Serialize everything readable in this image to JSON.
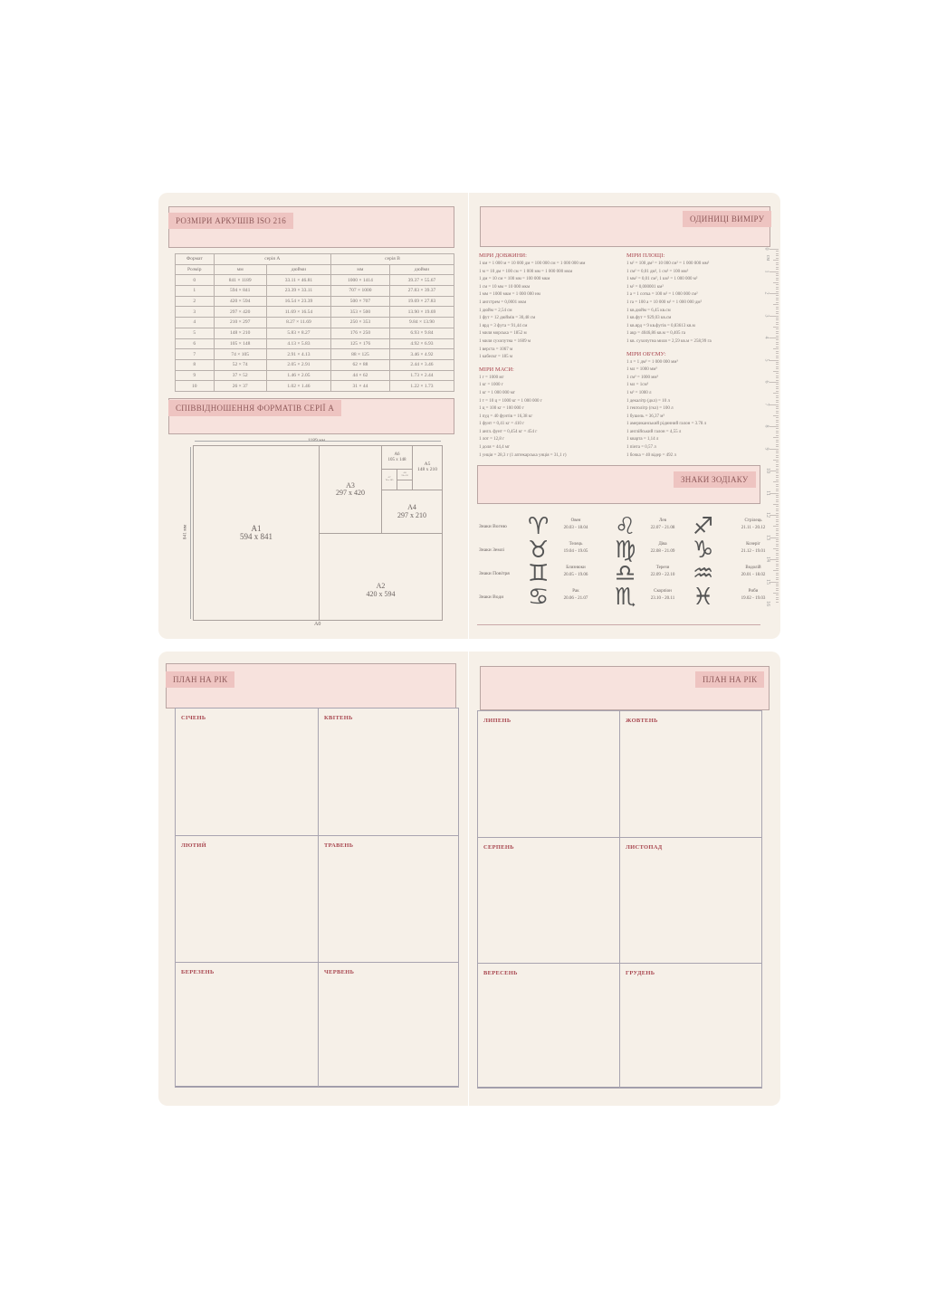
{
  "iso": {
    "title": "РОЗМІРИ АРКУШІВ ISO 216",
    "h_format": "Формат",
    "h_size": "Розмір",
    "series_a": "серія А",
    "series_b": "серія В",
    "mm": "мм",
    "inch": "дюйми",
    "rows": [
      [
        "0",
        "841 × 1189",
        "33.11 × 46.81",
        "1000 × 1414",
        "39.37 × 55.67"
      ],
      [
        "1",
        "594 × 841",
        "23.39 × 33.11",
        "707 × 1000",
        "27.83 × 39.37"
      ],
      [
        "2",
        "420 × 594",
        "16.54 × 23.39",
        "500 × 707",
        "19.69 × 27.83"
      ],
      [
        "3",
        "297 × 420",
        "11.69 × 16.54",
        "353 × 500",
        "13.90 × 19.69"
      ],
      [
        "4",
        "210 × 297",
        "8.27 × 11.69",
        "250 × 353",
        "9.84 × 13.90"
      ],
      [
        "5",
        "148 × 210",
        "5.83 × 8.27",
        "176 × 250",
        "6.93 × 9.84"
      ],
      [
        "6",
        "105 × 148",
        "4.13 × 5.83",
        "125 × 176",
        "4.92 × 6.93"
      ],
      [
        "7",
        "74 × 105",
        "2.91 × 4.13",
        "88 × 125",
        "3.46 × 4.92"
      ],
      [
        "8",
        "52 × 74",
        "2.05 × 2.91",
        "62 × 88",
        "2.44 × 3.46"
      ],
      [
        "9",
        "37 × 52",
        "1.46 × 2.05",
        "44 × 62",
        "1.73 × 2.44"
      ],
      [
        "10",
        "26 × 37",
        "1.02 × 1.46",
        "31 × 44",
        "1.22 × 1.73"
      ]
    ]
  },
  "ratio": {
    "title": "СПІВВІДНОШЕННЯ ФОРМАТІВ СЕРІЇ А",
    "width": "1189 мм",
    "height": "841 мм",
    "a0": "A0",
    "a1": [
      "A1",
      "594 x 841"
    ],
    "a2": [
      "A2",
      "420 x 594"
    ],
    "a3": [
      "A3",
      "297 x 420"
    ],
    "a4": [
      "A4",
      "297 x 210"
    ],
    "a5": [
      "A5",
      "148 x 210"
    ],
    "a6": [
      "A6",
      "105 x 148"
    ],
    "a7": [
      "A7",
      "74 x 105"
    ],
    "a8": [
      "A8",
      "74 x 52"
    ]
  },
  "units": {
    "title": "ОДИНИЦІ ВИМІРУ",
    "length_title": "МІРИ ДОВЖИНИ:",
    "length": [
      "1 км = 1 000 м = 10 000 дм = 100 000 см = 1 000 000 мм",
      "1 м = 10 дм = 100 см = 1 000 мм = 1 000 000 мкм",
      "1 дм = 10 см = 100 мм = 100 000 мкм",
      "1 см = 10 мм = 10 000 мкм",
      "1 мм = 1000 мкм = 1 000 000 нм",
      "1 ангстрем = 0,0001 мкм",
      "1 дюйм = 2,54 см",
      "1 фут = 12 дюймів = 30,48 см",
      "1 ярд = 3 фута = 91,44 см",
      "1 миля морська = 1852 м",
      "1 миля сухопутна = 1609 м",
      "1 верста = 1067 м",
      "1 кабельт = 185 м"
    ],
    "mass_title": "МІРИ МАСИ:",
    "mass": [
      "1 г = 1000 мг",
      "1 кг = 1000 г",
      "1 кг = 1 000 000 мг",
      "1 т = 10 ц = 1000 кг = 1 000 000 г",
      "1 ц = 100 кг = 100 000 г",
      "1 пуд = 40 фунтів = 16,38 кг",
      "1 фунт = 0,41 кг = 410 г",
      "1 англ. фунт = 0,454 кг = 454 г",
      "1 лот = 12,8 г",
      "1 доля = 44,4 мг",
      "1 унція = 28,3 г (1 аптекарська унція = 31,1 г)"
    ],
    "area_title": "МІРИ ПЛОЩІ:",
    "area": [
      "1 м² = 100 дм² = 10 000 см² = 1 000 000 мм²",
      "1 см² = 0,01 дм², 1 см² = 100 мм²",
      "1 мм² = 0,01 см², 1 км² = 1 000 000 м²",
      "1 м² = 0,000001 км²",
      "1 а = 1 сотка = 100 м² = 1 000 000 см²",
      "1 га = 100 а = 10 000 м² = 1 000 000 дм²",
      "1 кв.дюйм = 6,45 кв.см",
      "1 кв.фут = 929,03 кв.см",
      "1 кв.ярд = 9 кв.футів = 0,83613 кв.м",
      "1 акр = 4046,86 кв.м = 0,405 га",
      "1 кв. сухопутна миля = 2,59 кв.м = 258,99 га"
    ],
    "volume_title": "МІРИ ОБ'ЄМУ:",
    "volume": [
      "1 л = 1 дм³ = 1 000 000 мм³",
      "1 мл = 1000 мм³",
      "1 см³ = 1000 мм³",
      "1 мл = 1см³",
      "1 м³ = 1000 л",
      "1 декалітр (дкл) = 10 л",
      "1 гектолітр (гкл) = 100 л",
      "1 бушель = 36,37 м³",
      "1 американський рідинний галон = 3.78 л",
      "1 англійський галон = 4,55 л",
      "1 кварта = 1,14 л",
      "1 пінта = 0,57 л",
      "1 бочка = 40 відер = 492 л"
    ]
  },
  "ruler": {
    "unit": "см",
    "marks": [
      "0",
      "1",
      "2",
      "3",
      "4",
      "5",
      "6",
      "7",
      "8",
      "9",
      "10",
      "11",
      "12",
      "13",
      "14",
      "15",
      "16"
    ]
  },
  "zodiac": {
    "title": "ЗНАКИ ЗОДІАКУ",
    "rows": [
      "Знаки Вогню",
      "Знаки Землі",
      "Знаки Повітря",
      "Знаки Води"
    ],
    "signs": [
      [
        {
          "s": "♈︎",
          "n": "Овен",
          "d": "20.03 - 18.04"
        },
        {
          "s": "♌︎",
          "n": "Лев",
          "d": "22.07 - 21.08"
        },
        {
          "s": "♐︎",
          "n": "Стрілець",
          "d": "21.11 - 20.12"
        }
      ],
      [
        {
          "s": "♉︎",
          "n": "Телець",
          "d": "19.04 - 19.05"
        },
        {
          "s": "♍︎",
          "n": "Діва",
          "d": "22.08 - 21.09"
        },
        {
          "s": "♑︎",
          "n": "Козеріг",
          "d": "21.12 - 19.01"
        }
      ],
      [
        {
          "s": "♊︎",
          "n": "Близнюки",
          "d": "20.05 - 19.06"
        },
        {
          "s": "♎︎",
          "n": "Терези",
          "d": "22.09 - 22.10"
        },
        {
          "s": "♒︎",
          "n": "Водолій",
          "d": "20.01 - 18.02"
        }
      ],
      [
        {
          "s": "♋︎",
          "n": "Рак",
          "d": "20.06 - 21.07"
        },
        {
          "s": "♏︎",
          "n": "Скорпіон",
          "d": "23.10 - 20.11"
        },
        {
          "s": "♓︎",
          "n": "Риби",
          "d": "19.02 - 19.03"
        }
      ]
    ]
  },
  "plan_left": {
    "title": "ПЛАН НА РІК",
    "months": [
      "СІЧЕНЬ",
      "КВІТЕНЬ",
      "ЛЮТИЙ",
      "ТРАВЕНЬ",
      "БЕРЕЗЕНЬ",
      "ЧЕРВЕНЬ"
    ]
  },
  "plan_right": {
    "title": "ПЛАН НА РІК",
    "months": [
      "ЛИПЕНЬ",
      "ЖОВТЕНЬ",
      "СЕРПЕНЬ",
      "ЛИСТОПАД",
      "ВЕРЕСЕНЬ",
      "ГРУДЕНЬ"
    ]
  }
}
